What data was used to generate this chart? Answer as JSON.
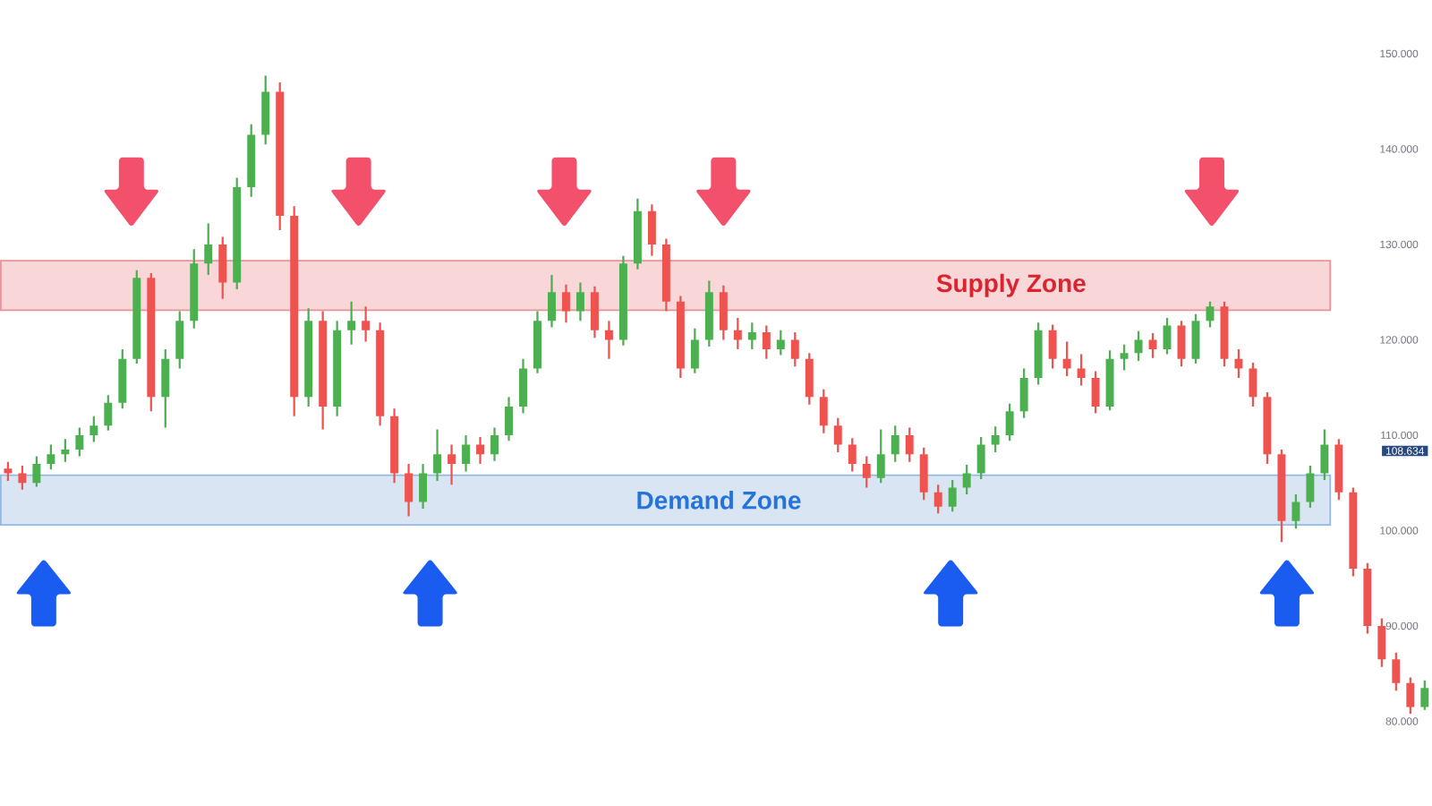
{
  "chart_data": {
    "type": "candlestick",
    "categories": [
      null,
      null,
      null,
      null,
      null,
      null,
      null,
      null,
      null,
      null,
      null,
      null,
      null,
      null,
      null,
      null,
      null,
      null,
      null,
      null,
      null,
      null,
      null,
      null,
      null,
      null,
      null,
      null,
      null,
      null,
      null,
      null,
      null,
      null,
      null,
      null,
      null,
      null,
      null,
      null,
      null,
      null,
      null,
      null,
      null,
      null,
      null,
      null,
      null,
      null,
      null,
      null,
      null,
      null,
      null,
      null,
      null,
      null,
      null,
      null,
      null,
      null,
      null,
      null,
      null,
      null,
      null,
      null,
      null,
      null,
      null,
      null,
      null,
      null,
      null,
      null,
      null,
      null,
      null,
      null,
      null,
      null,
      null,
      null,
      null,
      null,
      null,
      null,
      null,
      null,
      null,
      null,
      null,
      null,
      null,
      null,
      null,
      null,
      null,
      null
    ],
    "ohlc": [
      [
        106.5,
        107.2,
        105.2,
        106
      ],
      [
        106,
        106.8,
        104.3,
        105
      ],
      [
        105,
        107.8,
        104.6,
        107
      ],
      [
        107,
        109,
        106.4,
        108
      ],
      [
        108,
        109.6,
        107.2,
        108.5
      ],
      [
        108.5,
        110.8,
        107.8,
        110
      ],
      [
        110,
        112,
        109.3,
        111
      ],
      [
        111,
        114.2,
        110.5,
        113.4
      ],
      [
        113.4,
        119,
        112.8,
        118
      ],
      [
        118,
        127.3,
        117.5,
        126.5
      ],
      [
        126.5,
        127,
        112.5,
        114
      ],
      [
        114,
        119,
        110.8,
        118
      ],
      [
        118,
        123,
        117,
        122
      ],
      [
        122,
        129.5,
        121.2,
        128
      ],
      [
        128,
        132.2,
        126.8,
        130
      ],
      [
        130,
        130.8,
        124.3,
        126
      ],
      [
        126,
        137,
        125.3,
        136
      ],
      [
        136,
        142.6,
        135,
        141.5
      ],
      [
        141.5,
        147.7,
        140.5,
        146
      ],
      [
        146,
        147,
        131.5,
        133
      ],
      [
        133,
        134,
        112,
        114
      ],
      [
        114,
        123.3,
        113,
        122
      ],
      [
        122,
        123,
        110.6,
        113
      ],
      [
        113,
        122,
        112,
        121
      ],
      [
        121,
        124,
        119.5,
        122
      ],
      [
        122,
        123.5,
        119.8,
        121
      ],
      [
        121,
        121.8,
        111,
        112
      ],
      [
        112,
        112.8,
        105,
        106
      ],
      [
        106,
        107,
        101.5,
        103
      ],
      [
        103,
        107,
        102.3,
        106
      ],
      [
        106,
        110.6,
        105.2,
        108
      ],
      [
        108,
        109,
        104.8,
        107
      ],
      [
        107,
        110,
        106.2,
        109
      ],
      [
        109,
        109.8,
        107,
        108
      ],
      [
        108,
        110.8,
        107.3,
        110
      ],
      [
        110,
        114,
        109.4,
        113
      ],
      [
        113,
        118,
        112.3,
        117
      ],
      [
        117,
        123,
        116.5,
        122
      ],
      [
        122,
        126.8,
        121.3,
        125
      ],
      [
        125,
        125.8,
        121.8,
        123
      ],
      [
        123,
        126,
        122,
        125
      ],
      [
        125,
        125.6,
        120.2,
        121
      ],
      [
        121,
        122,
        118,
        120
      ],
      [
        120,
        128.8,
        119.4,
        128
      ],
      [
        128,
        134.8,
        127.4,
        133.5
      ],
      [
        133.5,
        134.2,
        128.8,
        130
      ],
      [
        130,
        130.6,
        123,
        124
      ],
      [
        124,
        124.6,
        116,
        117
      ],
      [
        117,
        121.2,
        116.5,
        120
      ],
      [
        120,
        126.2,
        119.3,
        125
      ],
      [
        125,
        125.7,
        120,
        121
      ],
      [
        121,
        122.3,
        119,
        120
      ],
      [
        120,
        121.8,
        119,
        120.8
      ],
      [
        120.8,
        121.5,
        118,
        119
      ],
      [
        119,
        121,
        118.4,
        120
      ],
      [
        120,
        120.8,
        117.2,
        118
      ],
      [
        118,
        118.6,
        113.2,
        114
      ],
      [
        114,
        114.8,
        110.2,
        111
      ],
      [
        111,
        111.8,
        108.2,
        109
      ],
      [
        109,
        109.7,
        106.2,
        107
      ],
      [
        107,
        107.8,
        104.5,
        105.5
      ],
      [
        105.5,
        110.6,
        105,
        108
      ],
      [
        108,
        111,
        107.2,
        110
      ],
      [
        110,
        110.8,
        107.2,
        108
      ],
      [
        108,
        108.7,
        103.2,
        104
      ],
      [
        104,
        104.8,
        101.8,
        102.5
      ],
      [
        102.5,
        105.3,
        102,
        104.5
      ],
      [
        104.5,
        106.9,
        103.8,
        106
      ],
      [
        106,
        109.8,
        105.4,
        109
      ],
      [
        109,
        110.9,
        108.2,
        110
      ],
      [
        110,
        113.3,
        109.4,
        112.5
      ],
      [
        112.5,
        117,
        111.8,
        116
      ],
      [
        116,
        121.8,
        115.3,
        121
      ],
      [
        121,
        121.6,
        117,
        118
      ],
      [
        118,
        119.8,
        116.2,
        117
      ],
      [
        117,
        118.5,
        115.2,
        116
      ],
      [
        116,
        116.7,
        112.3,
        113
      ],
      [
        113,
        118.9,
        112.6,
        118
      ],
      [
        118,
        119.5,
        116.8,
        118.6
      ],
      [
        118.6,
        120.9,
        117.8,
        120
      ],
      [
        120,
        120.7,
        118.1,
        119
      ],
      [
        119,
        122.3,
        118.5,
        121.5
      ],
      [
        121.5,
        122,
        117.2,
        118
      ],
      [
        118,
        122.7,
        117.5,
        122
      ],
      [
        122,
        124,
        121.3,
        123.5
      ],
      [
        123.5,
        124,
        117.2,
        118
      ],
      [
        118,
        119,
        116,
        117
      ],
      [
        117,
        117.6,
        113,
        114
      ],
      [
        114,
        114.5,
        107,
        108
      ],
      [
        108,
        108.5,
        98.8,
        101
      ],
      [
        101,
        103.8,
        100.2,
        103
      ],
      [
        103,
        106.8,
        102.4,
        106
      ],
      [
        106,
        110.6,
        105.3,
        109
      ],
      [
        109,
        109.6,
        103.2,
        104
      ],
      [
        104,
        104.5,
        95.2,
        96
      ],
      [
        96,
        96.6,
        89.2,
        90
      ],
      [
        90,
        90.8,
        85.7,
        86.5
      ],
      [
        86.5,
        87.2,
        83.2,
        84
      ],
      [
        84,
        84.6,
        80.8,
        81.5
      ],
      [
        81.5,
        84.3,
        81.2,
        83.5
      ]
    ],
    "colors": [
      "#ef5350",
      "#ef5350",
      "#4caf50",
      "#4caf50",
      "#4caf50",
      "#4caf50",
      "#4caf50",
      "#4caf50",
      "#4caf50",
      "#4caf50",
      "#ef5350",
      "#4caf50",
      "#4caf50",
      "#4caf50",
      "#4caf50",
      "#ef5350",
      "#4caf50",
      "#4caf50",
      "#4caf50",
      "#ef5350",
      "#ef5350",
      "#4caf50",
      "#ef5350",
      "#4caf50",
      "#4caf50",
      "#ef5350",
      "#ef5350",
      "#ef5350",
      "#ef5350",
      "#4caf50",
      "#4caf50",
      "#ef5350",
      "#4caf50",
      "#ef5350",
      "#4caf50",
      "#4caf50",
      "#4caf50",
      "#4caf50",
      "#4caf50",
      "#ef5350",
      "#4caf50",
      "#ef5350",
      "#ef5350",
      "#4caf50",
      "#4caf50",
      "#ef5350",
      "#ef5350",
      "#ef5350",
      "#4caf50",
      "#4caf50",
      "#ef5350",
      "#ef5350",
      "#4caf50",
      "#ef5350",
      "#4caf50",
      "#ef5350",
      "#ef5350",
      "#ef5350",
      "#ef5350",
      "#ef5350",
      "#ef5350",
      "#4caf50",
      "#4caf50",
      "#ef5350",
      "#ef5350",
      "#ef5350",
      "#4caf50",
      "#4caf50",
      "#4caf50",
      "#4caf50",
      "#4caf50",
      "#4caf50",
      "#4caf50",
      "#ef5350",
      "#ef5350",
      "#ef5350",
      "#ef5350",
      "#4caf50",
      "#4caf50",
      "#4caf50",
      "#ef5350",
      "#4caf50",
      "#ef5350",
      "#4caf50",
      "#4caf50",
      "#ef5350",
      "#ef5350",
      "#ef5350",
      "#ef5350",
      "#ef5350",
      "#4caf50",
      "#4caf50",
      "#4caf50",
      "#ef5350",
      "#ef5350",
      "#ef5350",
      "#ef5350",
      "#ef5350",
      "#ef5350",
      "#4caf50"
    ],
    "ylim": [
      80,
      150
    ],
    "yticks": [
      {
        "value": 80,
        "label": "80.000"
      },
      {
        "value": 90,
        "label": "90.000"
      },
      {
        "value": 100,
        "label": "100.000"
      },
      {
        "value": 110,
        "label": "110.000"
      },
      {
        "value": 120,
        "label": "120.000"
      },
      {
        "value": 130,
        "label": "130.000"
      },
      {
        "value": 140,
        "label": "140.000"
      },
      {
        "value": 150,
        "label": "150.000"
      }
    ],
    "tick_labels": "y",
    "bands": [
      {
        "axis": "y",
        "from": 123.1,
        "to": 128.3,
        "label": "Supply Zone",
        "color": "#f9d6d8"
      },
      {
        "axis": "y",
        "from": 100.6,
        "to": 105.8,
        "label": "Demand Zone",
        "color": "#dae5f3"
      }
    ],
    "annotations": [
      "108.634"
    ]
  }
}
